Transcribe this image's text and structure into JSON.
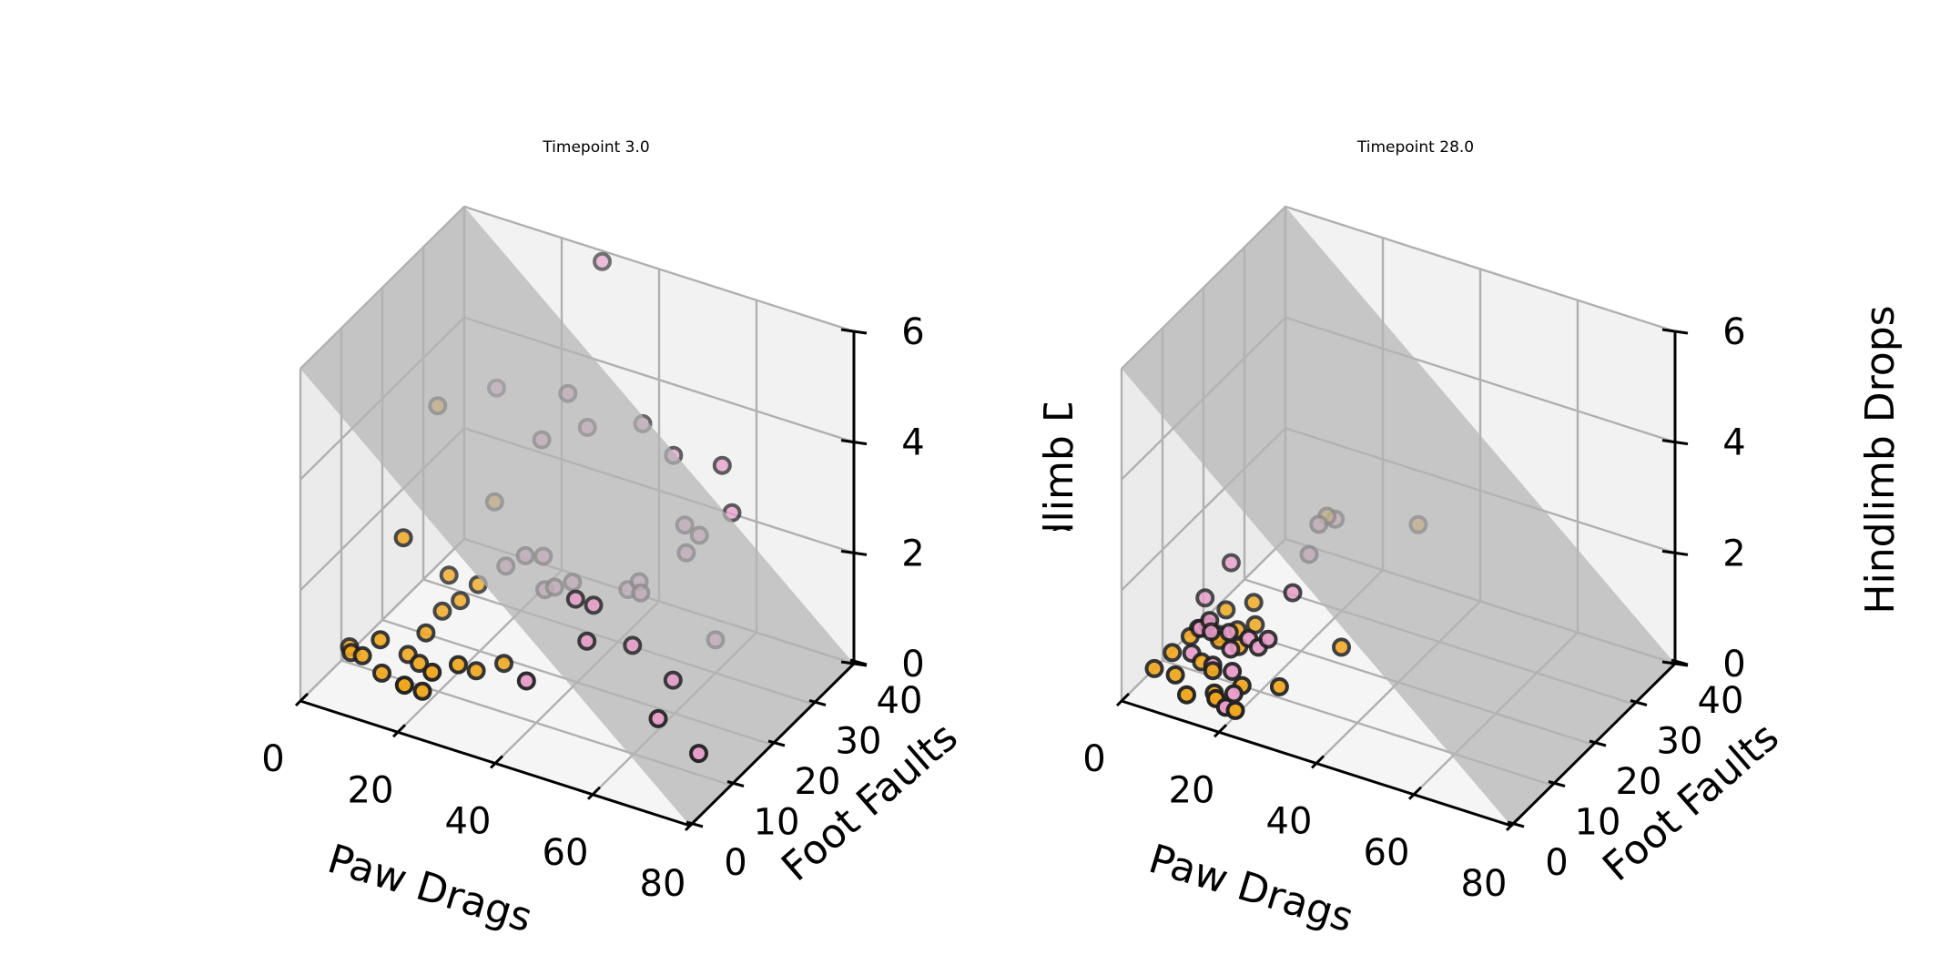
{
  "figure": {
    "colors": {
      "group_a": "#e89cc9",
      "group_b": "#f0a71e",
      "point_edge": "#222222",
      "plane": "#b4b4b4",
      "pane": "#f2f2f2",
      "grid": "#b0b0b0"
    }
  },
  "chart_data": [
    {
      "type": "scatter3d",
      "title": "Timepoint 3.0",
      "xlabel": "Paw Drags",
      "ylabel": "Foot Faults",
      "zlabel": "Hindlimb Drops",
      "xlim": [
        0,
        80
      ],
      "ylim": [
        0,
        40
      ],
      "zlim": [
        0,
        6
      ],
      "xticks": [
        "0",
        "20",
        "40",
        "60",
        "80"
      ],
      "yticks": [
        "0",
        "10",
        "20",
        "30",
        "40"
      ],
      "zticks": [
        "0",
        "2",
        "4",
        "6"
      ],
      "zlabel_clipped": true,
      "plane": {
        "corners": [
          [
            0,
            40,
            6
          ],
          [
            80,
            40,
            0
          ],
          [
            80,
            0,
            0
          ],
          [
            0,
            0,
            6
          ]
        ]
      },
      "series": [
        {
          "color_key": "group_a",
          "points": [
            [
              30,
              38,
              6
            ],
            [
              28,
              32,
              4
            ],
            [
              26,
              28,
              3.4
            ],
            [
              32,
              32,
              3.5
            ],
            [
              40,
              36,
              3.5
            ],
            [
              48,
              34,
              3.3
            ],
            [
              58,
              34,
              3.4
            ],
            [
              60,
              34,
              2.6
            ],
            [
              54,
              30,
              2
            ],
            [
              55,
              32,
              2.2
            ],
            [
              52,
              32,
              2.3
            ],
            [
              48,
              26,
              1.4
            ],
            [
              46,
              28,
              1.4
            ],
            [
              40,
              24,
              1.1
            ],
            [
              38,
              22,
              1.3
            ],
            [
              42,
              20,
              0.8
            ],
            [
              34,
              26,
              1.2
            ],
            [
              30,
              24,
              1.1
            ],
            [
              28,
              26,
              1.5
            ],
            [
              26,
              24,
              1.6
            ],
            [
              22,
              24,
              1.3
            ],
            [
              10,
              36,
              3.3
            ],
            [
              42,
              30,
              1
            ],
            [
              48,
              24,
              0.6
            ],
            [
              60,
              30,
              0.6
            ],
            [
              70,
              14,
              0
            ],
            [
              60,
              16,
              0.2
            ],
            [
              38,
              10,
              0.7
            ],
            [
              58,
              22,
              0.4
            ],
            [
              32,
              24,
              1.2
            ]
          ]
        },
        {
          "color_key": "group_b",
          "points": [
            [
              8,
              24,
              3.8
            ],
            [
              6,
              18,
              1.8
            ],
            [
              0,
              12,
              0.1
            ],
            [
              2,
              10,
              0.2
            ],
            [
              6,
              8,
              0.4
            ],
            [
              12,
              12,
              0.3
            ],
            [
              14,
              14,
              0.6
            ],
            [
              8,
              10,
              0.6
            ],
            [
              22,
              6,
              0.7
            ],
            [
              20,
              6,
              0.3
            ],
            [
              16,
              10,
              0.4
            ],
            [
              12,
              22,
              1
            ],
            [
              16,
              20,
              0.8
            ],
            [
              18,
              22,
              1
            ],
            [
              14,
              18,
              0.7
            ],
            [
              24,
              10,
              0.6
            ],
            [
              26,
              12,
              0.4
            ],
            [
              30,
              14,
              0.5
            ],
            [
              10,
              8,
              0.2
            ],
            [
              18,
              4,
              0.5
            ],
            [
              18,
              26,
              2.2
            ]
          ]
        }
      ]
    },
    {
      "type": "scatter3d",
      "title": "Timepoint 28.0",
      "xlabel": "Paw Drags",
      "ylabel": "Foot Faults",
      "zlabel": "Hindlimb Drops",
      "xlim": [
        0,
        80
      ],
      "ylim": [
        0,
        40
      ],
      "zlim": [
        0,
        6
      ],
      "xticks": [
        "0",
        "20",
        "40",
        "60",
        "80"
      ],
      "yticks": [
        "0",
        "10",
        "20",
        "30",
        "40"
      ],
      "zticks": [
        "0",
        "2",
        "4",
        "6"
      ],
      "zlabel_clipped": false,
      "plane": {
        "corners": [
          [
            0,
            40,
            6
          ],
          [
            80,
            40,
            0
          ],
          [
            80,
            0,
            0
          ],
          [
            0,
            0,
            6
          ]
        ]
      },
      "series": [
        {
          "color_key": "group_a",
          "points": [
            [
              4,
              22,
              1
            ],
            [
              2,
              18,
              0.6
            ],
            [
              4,
              14,
              0.4
            ],
            [
              6,
              12,
              0.6
            ],
            [
              8,
              12,
              0.8
            ],
            [
              10,
              10,
              0.8
            ],
            [
              12,
              8,
              0.4
            ],
            [
              12,
              12,
              0.7
            ],
            [
              14,
              10,
              0.6
            ],
            [
              16,
              8,
              0.4
            ],
            [
              16,
              12,
              0.7
            ],
            [
              18,
              12,
              0.6
            ],
            [
              20,
              12,
              0.8
            ],
            [
              20,
              18,
              1.2
            ],
            [
              18,
              4,
              0.1
            ],
            [
              18,
              6,
              0.2
            ],
            [
              8,
              14,
              0.4
            ],
            [
              6,
              10,
              0.3
            ],
            [
              20,
              22,
              1.6
            ],
            [
              22,
              22,
              2.2
            ],
            [
              22,
              26,
              2
            ]
          ]
        },
        {
          "color_key": "group_b",
          "points": [
            [
              0,
              8,
              0
            ],
            [
              2,
              10,
              0.2
            ],
            [
              4,
              12,
              0.4
            ],
            [
              6,
              14,
              0.5
            ],
            [
              8,
              10,
              0.2
            ],
            [
              6,
              6,
              0.2
            ],
            [
              10,
              4,
              0.1
            ],
            [
              8,
              16,
              0.7
            ],
            [
              10,
              12,
              0.5
            ],
            [
              12,
              14,
              0.6
            ],
            [
              14,
              12,
              0.5
            ],
            [
              12,
              8,
              0.3
            ],
            [
              14,
              6,
              0.1
            ],
            [
              16,
              4,
              0.2
            ],
            [
              18,
              8,
              0.2
            ],
            [
              20,
              4,
              0.1
            ],
            [
              12,
              18,
              0.8
            ],
            [
              22,
              24,
              2.2
            ],
            [
              14,
              16,
              0.6
            ],
            [
              24,
              10,
              0.2
            ],
            [
              34,
              32,
              1.8
            ],
            [
              30,
              18,
              0.5
            ]
          ]
        }
      ]
    }
  ]
}
